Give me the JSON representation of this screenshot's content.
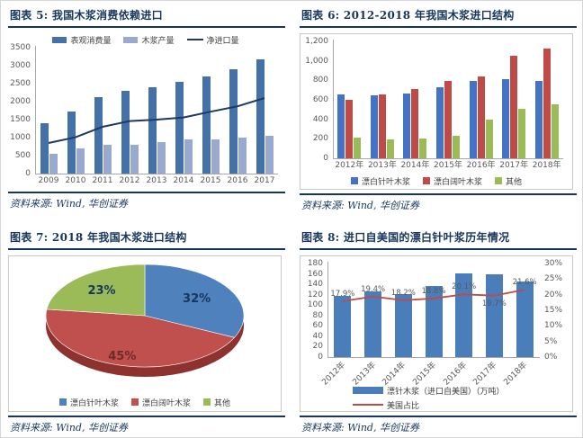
{
  "figures": [
    {
      "title": "图表 5: 我国木浆消费依赖进口",
      "source": "资料来源: Wind, 华创证券"
    },
    {
      "title": "图表 6: 2012-2018 年我国木浆进口结构",
      "source": "资料来源: Wind, 华创证券"
    },
    {
      "title": "图表 7: 2018 年我国木浆进口结构",
      "source": "资料来源: Wind, 华创证券"
    },
    {
      "title": "图表 8: 进口自美国的漂白针叶浆历年情况",
      "source": "资料来源: Wind, 华创证券"
    }
  ],
  "colors": {
    "title_navy": "#17365D",
    "rule_navy": "#17365D",
    "box_border": "#c9c9c9"
  },
  "chart_data": [
    {
      "type": "bar",
      "title": "我国木浆消费依赖进口",
      "categories": [
        "2009",
        "2010",
        "2011",
        "2012",
        "2013",
        "2014",
        "2015",
        "2016",
        "2017"
      ],
      "series": [
        {
          "name": "表观消费量",
          "type": "bar",
          "color": "#4472A8",
          "values": [
            1400,
            1730,
            2120,
            2300,
            2400,
            2550,
            2700,
            2900,
            3170
          ]
        },
        {
          "name": "木浆产量",
          "type": "bar",
          "color": "#9AA9CF",
          "values": [
            560,
            700,
            800,
            790,
            880,
            950,
            940,
            990,
            1050
          ]
        },
        {
          "name": "净进口量",
          "type": "line",
          "color": "#1F3864",
          "values": [
            850,
            1010,
            1300,
            1460,
            1500,
            1560,
            1720,
            1870,
            2100
          ]
        }
      ],
      "ylim": [
        0,
        3500
      ],
      "y_ticks": [
        "0",
        "500",
        "1000",
        "1500",
        "2000",
        "2500",
        "3000",
        "3500"
      ],
      "legend_position": "top",
      "grid": false
    },
    {
      "type": "bar",
      "title": "2012-2018 年我国木浆进口结构",
      "categories": [
        "2012年",
        "2013年",
        "2014年",
        "2015年",
        "2016年",
        "2017年",
        "2018年"
      ],
      "series": [
        {
          "name": "漂白针叶木浆",
          "type": "bar",
          "color": "#4472C4",
          "values": [
            655,
            645,
            665,
            730,
            795,
            815,
            790
          ]
        },
        {
          "name": "漂白阔叶木浆",
          "type": "bar",
          "color": "#BE4B48",
          "values": [
            605,
            655,
            710,
            790,
            840,
            1050,
            1130
          ]
        },
        {
          "name": "其他",
          "type": "bar",
          "color": "#9BBB59",
          "values": [
            210,
            190,
            205,
            235,
            400,
            510,
            555
          ]
        }
      ],
      "ylim": [
        0,
        1200
      ],
      "y_ticks": [
        "0",
        "200",
        "400",
        "600",
        "800",
        "1,000",
        "1,200"
      ],
      "legend_position": "bottom",
      "grid": false
    },
    {
      "type": "pie",
      "title": "2018 年我国木浆进口结构",
      "rim_color": "#8E3230",
      "slices": [
        {
          "name": "漂白针叶木浆",
          "value": 32,
          "label": "32%",
          "color": "#4F81BD",
          "label_color": "#17365D"
        },
        {
          "name": "漂白阔叶木浆",
          "value": 45,
          "label": "45%",
          "color": "#C0504D",
          "label_color": "#6E2B28"
        },
        {
          "name": "其他",
          "value": 23,
          "label": "23%",
          "color": "#9BBB59",
          "label_color": "#17365D"
        }
      ],
      "legend_position": "bottom"
    },
    {
      "type": "bar",
      "title": "进口自美国的漂白针叶浆历年情况",
      "categories": [
        "2012年",
        "2013年",
        "2014年",
        "2015年",
        "2016年",
        "2017年",
        "2018年"
      ],
      "series": [
        {
          "name": "漂针木浆（进口自美国）（万吨）",
          "type": "bar",
          "axis": "left",
          "color": "#4A7EBB",
          "values": [
            118,
            127,
            122,
            137,
            161,
            159,
            145
          ]
        },
        {
          "name": "美国占比",
          "type": "line",
          "axis": "right",
          "color": "#BE4B48",
          "values": [
            17.9,
            19.4,
            18.2,
            18.8,
            20.1,
            19.7,
            21.6
          ],
          "labels": [
            "17.9%",
            "19.4%",
            "18.2%",
            "18.8%",
            "20.1%",
            "19.7%",
            "21.6%"
          ]
        }
      ],
      "ylim": [
        0,
        180
      ],
      "y_ticks": [
        "0",
        "20",
        "40",
        "60",
        "80",
        "100",
        "120",
        "140",
        "160",
        "180"
      ],
      "y2lim": [
        0,
        30
      ],
      "y2_ticks": [
        "0%",
        "5%",
        "10%",
        "15%",
        "20%",
        "25%",
        "30%"
      ],
      "legend_position": "bottom-left",
      "grid": false
    }
  ]
}
